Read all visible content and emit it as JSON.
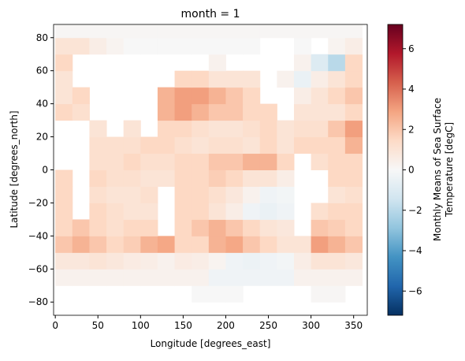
{
  "chart_data": {
    "type": "heatmap",
    "title": "month = 1",
    "xlabel": "Longitude [degrees_east]",
    "ylabel": "Latitude [degrees_north]",
    "colorbar_label": [
      "Monthly Means of Sea Surface",
      "Temperature [degC]"
    ],
    "colormap": "RdBu_r",
    "x": [
      10,
      30,
      50,
      70,
      90,
      110,
      130,
      150,
      170,
      190,
      210,
      230,
      250,
      270,
      290,
      310,
      330,
      350
    ],
    "y": [
      -85,
      -75,
      -65,
      -55,
      -45,
      -35,
      -25,
      -15,
      -5,
      5,
      15,
      25,
      35,
      45,
      55,
      65,
      75,
      85
    ],
    "values": [
      [
        null,
        null,
        null,
        null,
        null,
        null,
        null,
        null,
        null,
        null,
        null,
        null,
        null,
        null,
        null,
        null,
        null,
        null
      ],
      [
        null,
        null,
        null,
        null,
        null,
        null,
        null,
        null,
        0,
        0,
        0,
        null,
        null,
        null,
        null,
        0.1,
        0.1,
        null
      ],
      [
        0.3,
        0.3,
        0.3,
        0.3,
        0.3,
        0.3,
        0.3,
        0.3,
        0.3,
        -0.3,
        -0.3,
        -0.3,
        -0.3,
        -0.3,
        0.3,
        0.3,
        0.3,
        0.3
      ],
      [
        0.8,
        0.8,
        1,
        0.8,
        0.6,
        0.5,
        0.3,
        0.6,
        0.5,
        0.2,
        -0.3,
        -0.4,
        -0.3,
        -0.2,
        0.5,
        1,
        1,
        0.8
      ],
      [
        2,
        2.5,
        2,
        1.5,
        1.8,
        2.5,
        2.8,
        1.5,
        1.5,
        2.5,
        2.8,
        2,
        1.5,
        1,
        1,
        3,
        2.5,
        2
      ],
      [
        1.5,
        2,
        1.5,
        1.2,
        1.5,
        1.5,
        null,
        1.5,
        2,
        2.5,
        2,
        1.5,
        1,
        0.8,
        null,
        2,
        1.8,
        1.5
      ],
      [
        1.5,
        null,
        1.5,
        1.2,
        1,
        1,
        null,
        1.5,
        1.5,
        1,
        0.5,
        -0.3,
        -0.5,
        -0.3,
        null,
        1.2,
        1.5,
        1.5
      ],
      [
        1.5,
        null,
        1.2,
        1,
        1,
        1.2,
        null,
        1.5,
        1.5,
        1.2,
        0.8,
        0.3,
        -0.3,
        -0.2,
        null,
        null,
        1,
        1.2
      ],
      [
        1.5,
        null,
        1.5,
        1.2,
        1.2,
        1,
        1,
        1.5,
        1.5,
        1.8,
        1.5,
        1,
        1,
        0.5,
        null,
        null,
        1.5,
        1.5
      ],
      [
        null,
        null,
        1.2,
        1.2,
        1.5,
        1.2,
        1.2,
        1.5,
        1.5,
        2,
        2,
        2.5,
        2.5,
        1.5,
        null,
        1.2,
        1.5,
        1.5
      ],
      [
        null,
        null,
        1.2,
        1.2,
        1.2,
        1.5,
        1.5,
        1.2,
        1,
        1.2,
        1.2,
        1,
        1.5,
        1,
        1.5,
        1.5,
        1.5,
        2.5
      ],
      [
        null,
        null,
        1,
        null,
        1,
        null,
        1.5,
        1.5,
        1.2,
        1,
        1,
        1.2,
        1.5,
        1,
        1.2,
        1.2,
        2,
        3
      ],
      [
        1.5,
        1.2,
        null,
        null,
        null,
        null,
        2.5,
        3,
        2.5,
        2,
        2,
        1.5,
        1.5,
        null,
        1,
        1,
        1,
        1.5
      ],
      [
        1,
        1.5,
        null,
        null,
        null,
        null,
        2.5,
        3,
        3,
        2.5,
        2,
        1.5,
        null,
        null,
        0.5,
        1,
        1.5,
        2
      ],
      [
        1,
        null,
        null,
        null,
        null,
        null,
        null,
        1.5,
        1.5,
        1,
        1,
        1,
        null,
        0.3,
        -0.5,
        0.5,
        1,
        1.5
      ],
      [
        1.5,
        null,
        null,
        null,
        null,
        null,
        null,
        null,
        null,
        0.3,
        null,
        null,
        null,
        null,
        0.3,
        -1,
        -2,
        1.5
      ],
      [
        1,
        1,
        0.5,
        0.2,
        0,
        0,
        0,
        0,
        0,
        0,
        0,
        0,
        null,
        null,
        0,
        null,
        0.2,
        0.5
      ],
      [
        0.1,
        0.1,
        0.1,
        0.1,
        0.1,
        0.1,
        0.1,
        0.1,
        0.1,
        0.1,
        0.1,
        0.1,
        0.1,
        0.1,
        0.1,
        0.1,
        0.1,
        0.1
      ]
    ],
    "xlim": [
      -2,
      366
    ],
    "ylim": [
      -88,
      88
    ],
    "clim": [
      -7.2,
      7.2
    ],
    "xticks": [
      0,
      50,
      100,
      150,
      200,
      250,
      300,
      350
    ],
    "yticks": [
      {
        "value": -80,
        "label": "−80"
      },
      {
        "value": -60,
        "label": "−60"
      },
      {
        "value": -40,
        "label": "−40"
      },
      {
        "value": -20,
        "label": "−20"
      },
      0,
      20,
      40,
      60,
      80
    ],
    "cticks": [
      {
        "value": -6,
        "label": "−6"
      },
      {
        "value": -4,
        "label": "−4"
      },
      {
        "value": -2,
        "label": "−2"
      },
      0,
      2,
      4,
      6
    ]
  }
}
